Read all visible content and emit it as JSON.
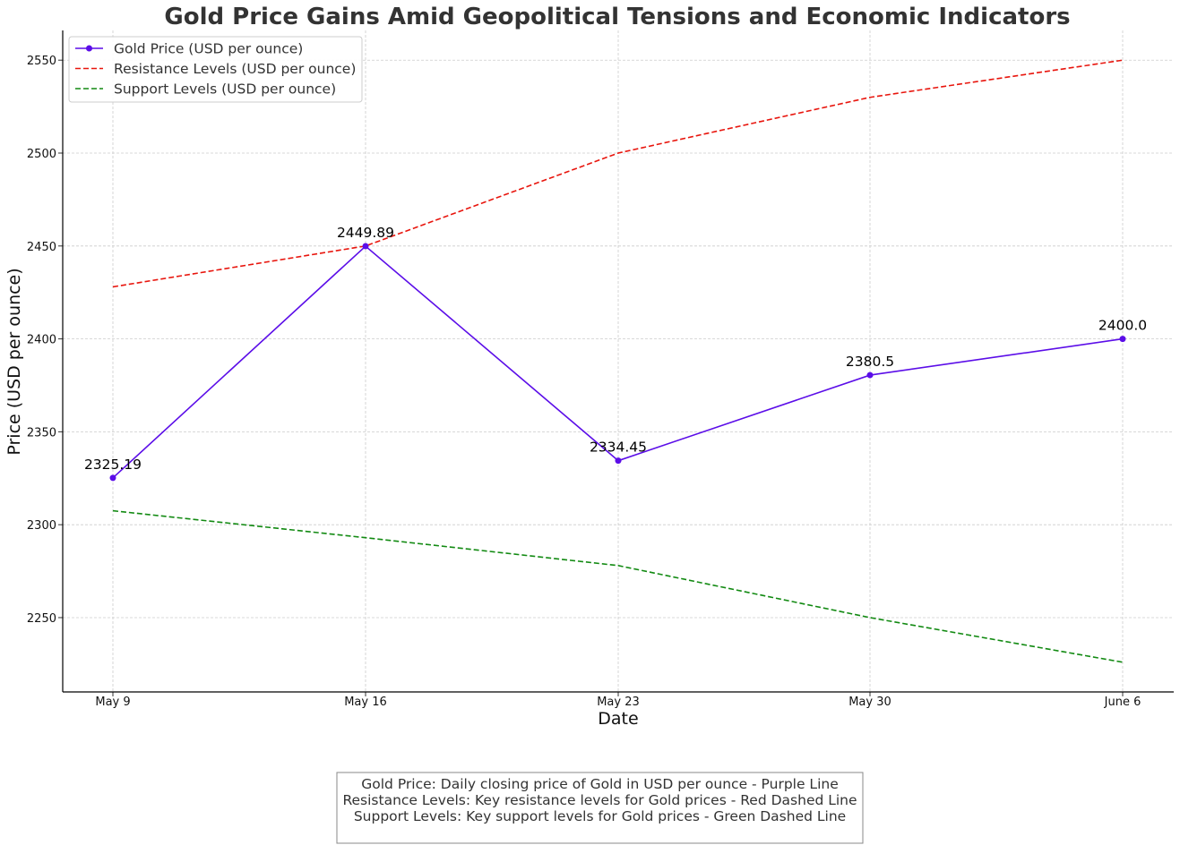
{
  "chart_data": {
    "type": "line",
    "title": "Gold Price Gains Amid Geopolitical Tensions and Economic Indicators",
    "xlabel": "Date",
    "ylabel": "Price (USD per ounce)",
    "categories": [
      "May 9",
      "May 16",
      "May 23",
      "May 30",
      "June 6"
    ],
    "ylim": [
      2210,
      2566
    ],
    "yticks": [
      2250,
      2300,
      2350,
      2400,
      2450,
      2500,
      2550
    ],
    "grid": true,
    "legend_position": "top-left",
    "series": [
      {
        "name": "Gold Price (USD per ounce)",
        "values": [
          2325.19,
          2449.89,
          2334.45,
          2380.5,
          2400.0
        ],
        "color": "#5b0de8",
        "style": "solid",
        "markers": true,
        "data_labels": [
          "2325.19",
          "2449.89",
          "2334.45",
          "2380.5",
          "2400.0"
        ]
      },
      {
        "name": "Resistance Levels (USD per ounce)",
        "values": [
          2428,
          2450,
          2500,
          2530,
          2550
        ],
        "color": "#e8150d",
        "style": "dashed",
        "markers": false
      },
      {
        "name": "Support Levels (USD per ounce)",
        "values": [
          2307.5,
          2293,
          2278,
          2250,
          2226
        ],
        "color": "#128a12",
        "style": "dashed",
        "markers": false
      }
    ],
    "annotation_box": [
      "Gold Price: Daily closing price of Gold in USD per ounce - Purple Line",
      "Resistance Levels: Key resistance levels for Gold prices - Red Dashed Line",
      "Support Levels: Key support levels for Gold prices - Green Dashed Line"
    ]
  }
}
